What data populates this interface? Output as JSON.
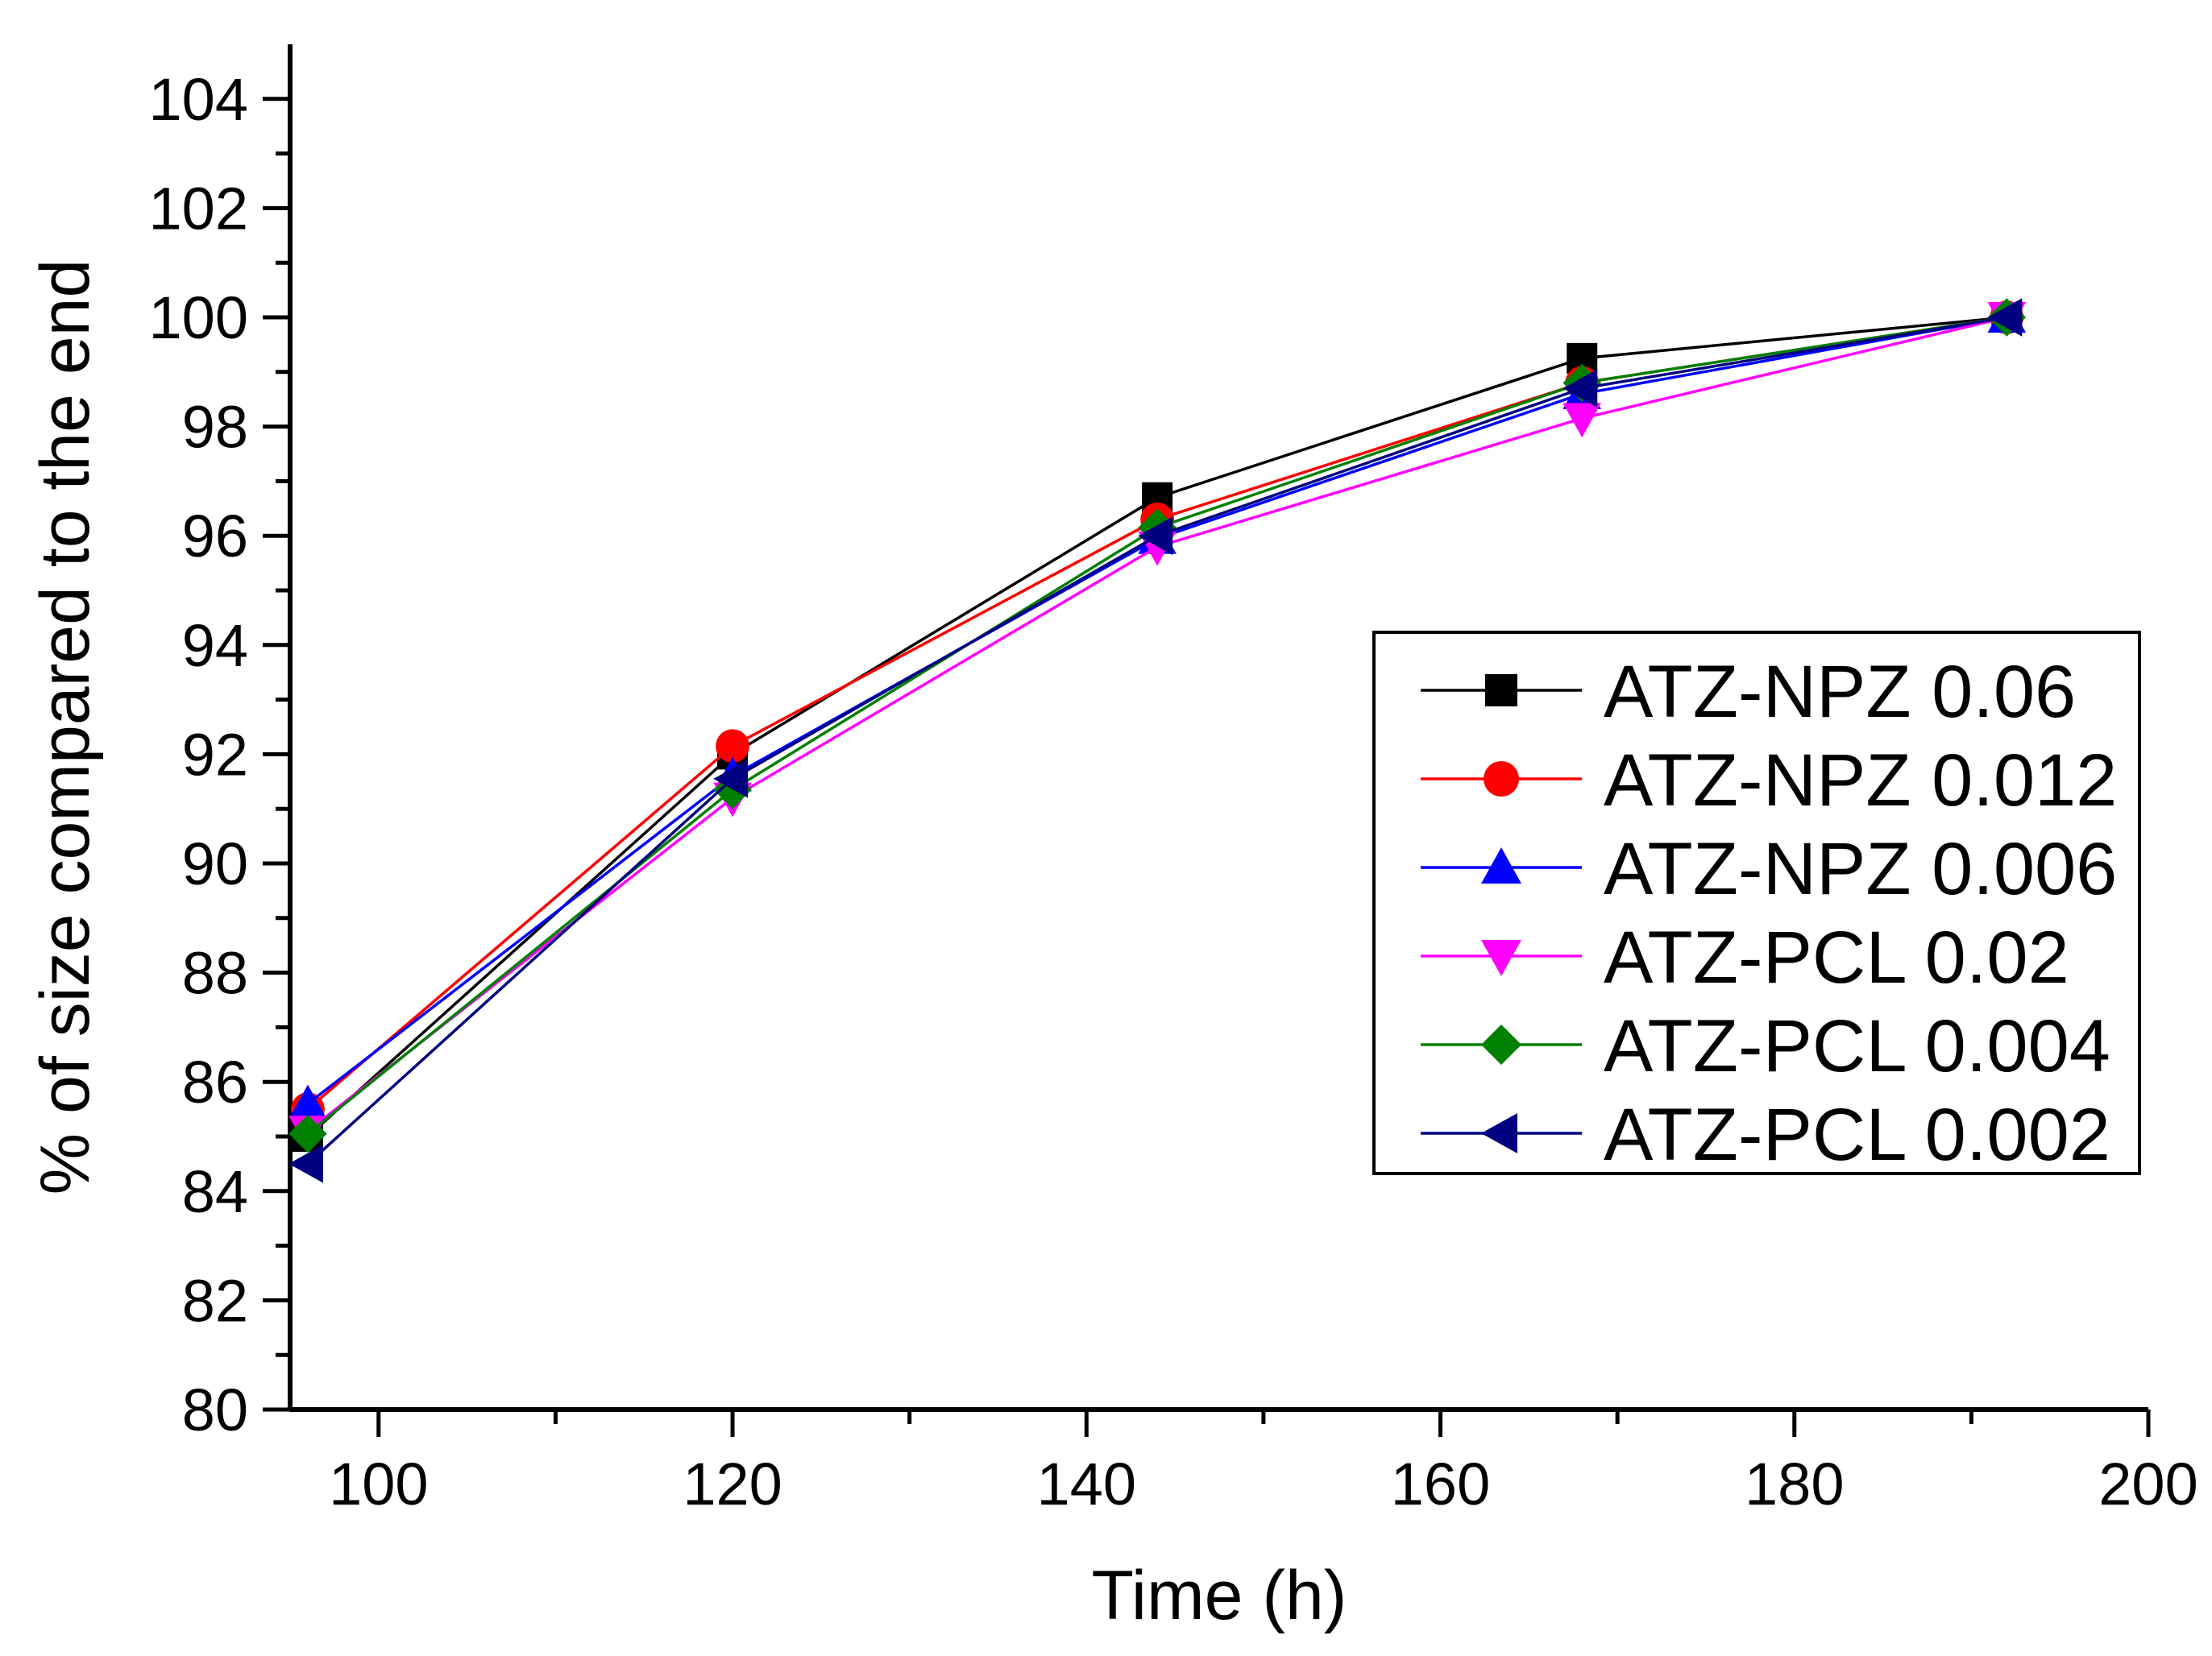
{
  "chart_data": {
    "type": "line",
    "title": "",
    "xlabel": "Time (h)",
    "ylabel": "% of size compared to the end",
    "xlim": [
      95,
      200
    ],
    "ylim": [
      80,
      105
    ],
    "x_ticks": [
      100,
      120,
      140,
      160,
      180,
      200
    ],
    "x_tick_labels": [
      "100",
      "120",
      "140",
      "160",
      "180",
      "200"
    ],
    "y_ticks": [
      80,
      82,
      84,
      86,
      88,
      90,
      92,
      94,
      96,
      98,
      100,
      102,
      104
    ],
    "y_tick_labels": [
      "80",
      "82",
      "84",
      "86",
      "88",
      "90",
      "92",
      "94",
      "96",
      "98",
      "100",
      "102",
      "104"
    ],
    "grid": false,
    "legend_position": "center-right",
    "x": [
      96,
      120,
      144,
      168,
      192
    ],
    "series": [
      {
        "name": "ATZ-NPZ 0.06",
        "color": "#000000",
        "marker": "square",
        "values": [
          85.0,
          92.0,
          96.7,
          99.25,
          100
        ]
      },
      {
        "name": "ATZ-NPZ 0.012",
        "color": "#ff0000",
        "marker": "circle",
        "values": [
          85.5,
          92.15,
          96.3,
          98.8,
          100
        ]
      },
      {
        "name": "ATZ-NPZ 0.006",
        "color": "#0000ff",
        "marker": "triangle-up",
        "values": [
          85.6,
          91.6,
          95.95,
          98.6,
          100
        ]
      },
      {
        "name": "ATZ-PCL 0.02",
        "color": "#ff00ff",
        "marker": "triangle-down",
        "values": [
          85.1,
          91.2,
          95.8,
          98.15,
          100
        ]
      },
      {
        "name": "ATZ-PCL 0.004",
        "color": "#008000",
        "marker": "diamond",
        "values": [
          85.05,
          91.35,
          96.15,
          98.8,
          100
        ]
      },
      {
        "name": "ATZ-PCL 0.002",
        "color": "#000080",
        "marker": "triangle-left",
        "values": [
          84.5,
          91.55,
          96.0,
          98.7,
          100
        ]
      }
    ]
  }
}
